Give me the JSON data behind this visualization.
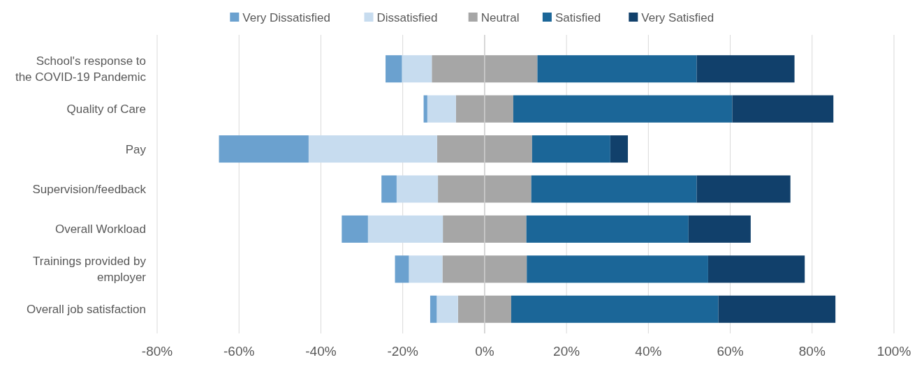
{
  "chart_data": {
    "type": "bar",
    "orientation": "horizontal",
    "stacked": true,
    "categories": [
      "School's response to the COVID-19 Pandemic",
      "Quality of Care",
      "Pay",
      "Supervision/feedback",
      "Overall Workload",
      "Trainings provided by employer",
      "Overall job satisfaction"
    ],
    "series": [
      {
        "color": "#a6a6a6",
        "values": [
          -12.9,
          -7.0,
          -11.6,
          -11.4,
          -10.2,
          -10.3,
          -6.5
        ]
      },
      {
        "name": "Neutral",
        "color": "#a6a6a6",
        "values": [
          12.9,
          7.0,
          11.6,
          11.4,
          10.2,
          10.3,
          6.5
        ]
      },
      {
        "name": "Dissatisfied",
        "color": "#c7dcef",
        "values": [
          -7.3,
          -7.0,
          -31.4,
          -10.1,
          -18.3,
          -8.2,
          -5.2
        ]
      },
      {
        "name": "Satisfied",
        "color": "#1b6698",
        "values": [
          38.9,
          53.5,
          19.1,
          40.4,
          39.6,
          44.3,
          50.6
        ]
      },
      {
        "name": "Very Dissatisfied",
        "color": "#6ba1cf",
        "values": [
          -4.0,
          -0.9,
          -21.9,
          -3.7,
          -6.4,
          -3.4,
          -1.6
        ]
      },
      {
        "name": "Very Satisfied",
        "color": "#11406b",
        "values": [
          23.9,
          24.7,
          4.3,
          22.9,
          15.2,
          23.6,
          28.6
        ]
      }
    ],
    "xlim": [
      -80,
      100
    ],
    "xticks": [
      {
        "value": -80,
        "label": "-80%"
      },
      {
        "value": -60,
        "label": "-60%"
      },
      {
        "value": -40,
        "label": "-40%"
      },
      {
        "value": -20,
        "label": "-20%"
      },
      {
        "value": 0,
        "label": "0%"
      },
      {
        "value": 20,
        "label": "20%"
      },
      {
        "value": 40,
        "label": "40%"
      },
      {
        "value": 60,
        "label": "60%"
      },
      {
        "value": 80,
        "label": "80%"
      },
      {
        "value": 100,
        "label": "100%"
      }
    ],
    "grid": "x",
    "legend": "top"
  }
}
